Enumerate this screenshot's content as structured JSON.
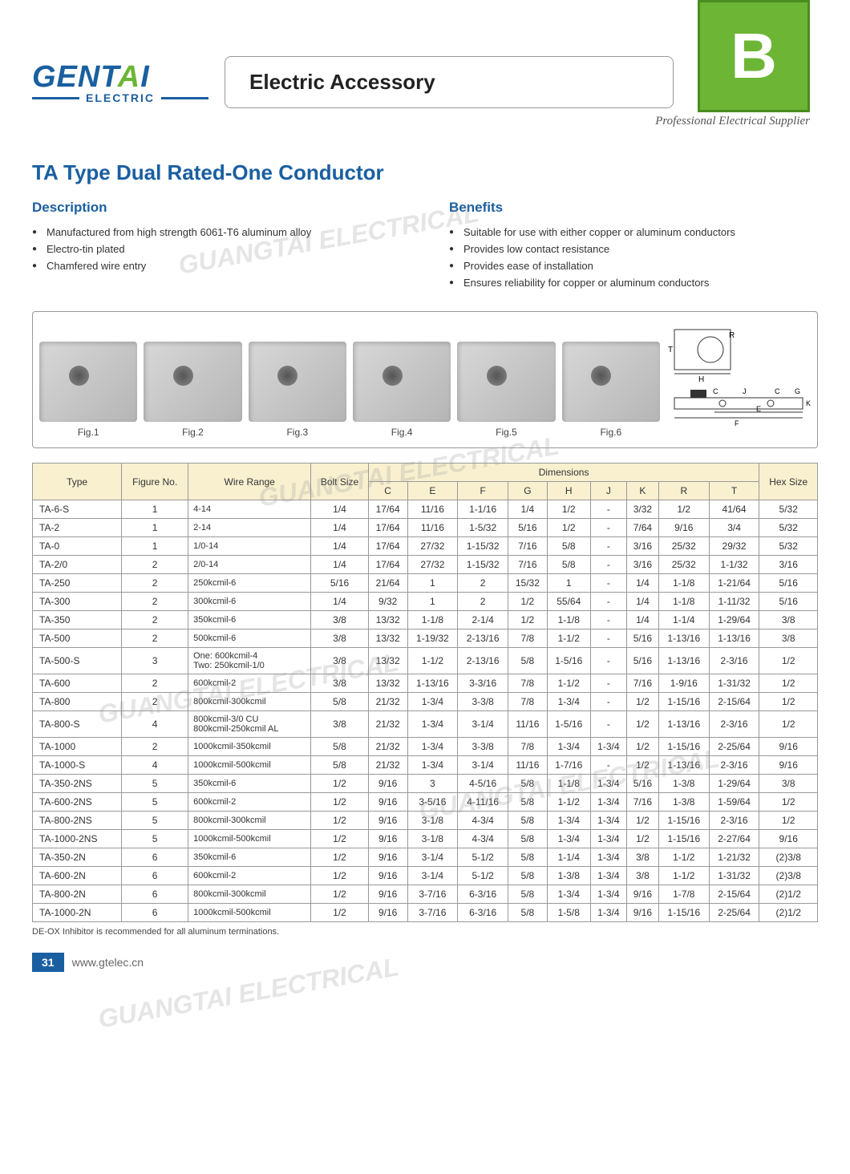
{
  "header": {
    "section_letter": "B",
    "logo_brand": "GENTAI",
    "logo_sub": "ELECTRIC",
    "category": "Electric Accessory",
    "tagline": "Professional Electrical Supplier"
  },
  "section_title": "TA Type Dual Rated-One Conductor",
  "description": {
    "heading": "Description",
    "items": [
      "Manufactured from high strength 6061-T6 aluminum alloy",
      "Electro-tin plated",
      "Chamfered wire entry"
    ]
  },
  "benefits": {
    "heading": "Benefits",
    "items": [
      "Suitable for use with either copper or aluminum conductors",
      "Provides low contact resistance",
      "Provides ease of installation",
      "Ensures reliability for copper or aluminum conductors"
    ]
  },
  "figures": [
    "Fig.1",
    "Fig.2",
    "Fig.3",
    "Fig.4",
    "Fig.5",
    "Fig.6"
  ],
  "table": {
    "top_headers": [
      "Type",
      "Figure No.",
      "Wire Range",
      "Bolt Size",
      "Dimensions",
      "Hex Size"
    ],
    "dim_headers": [
      "C",
      "E",
      "F",
      "G",
      "H",
      "J",
      "K",
      "R",
      "T"
    ],
    "rows": [
      [
        "TA-6-S",
        "1",
        "4-14",
        "1/4",
        "17/64",
        "11/16",
        "1-1/16",
        "1/4",
        "1/2",
        "-",
        "3/32",
        "1/2",
        "41/64",
        "5/32"
      ],
      [
        "TA-2",
        "1",
        "2-14",
        "1/4",
        "17/64",
        "11/16",
        "1-5/32",
        "5/16",
        "1/2",
        "-",
        "7/64",
        "9/16",
        "3/4",
        "5/32"
      ],
      [
        "TA-0",
        "1",
        "1/0-14",
        "1/4",
        "17/64",
        "27/32",
        "1-15/32",
        "7/16",
        "5/8",
        "-",
        "3/16",
        "25/32",
        "29/32",
        "5/32"
      ],
      [
        "TA-2/0",
        "2",
        "2/0-14",
        "1/4",
        "17/64",
        "27/32",
        "1-15/32",
        "7/16",
        "5/8",
        "-",
        "3/16",
        "25/32",
        "1-1/32",
        "3/16"
      ],
      [
        "TA-250",
        "2",
        "250kcmil-6",
        "5/16",
        "21/64",
        "1",
        "2",
        "15/32",
        "1",
        "-",
        "1/4",
        "1-1/8",
        "1-21/64",
        "5/16"
      ],
      [
        "TA-300",
        "2",
        "300kcmil-6",
        "1/4",
        "9/32",
        "1",
        "2",
        "1/2",
        "55/64",
        "-",
        "1/4",
        "1-1/8",
        "1-11/32",
        "5/16"
      ],
      [
        "TA-350",
        "2",
        "350kcmil-6",
        "3/8",
        "13/32",
        "1-1/8",
        "2-1/4",
        "1/2",
        "1-1/8",
        "-",
        "1/4",
        "1-1/4",
        "1-29/64",
        "3/8"
      ],
      [
        "TA-500",
        "2",
        "500kcmil-6",
        "3/8",
        "13/32",
        "1-19/32",
        "2-13/16",
        "7/8",
        "1-1/2",
        "-",
        "5/16",
        "1-13/16",
        "1-13/16",
        "3/8"
      ],
      [
        "TA-500-S",
        "3",
        "One: 600kcmil-4\nTwo: 250kcmil-1/0",
        "3/8",
        "13/32",
        "1-1/2",
        "2-13/16",
        "5/8",
        "1-5/16",
        "-",
        "5/16",
        "1-13/16",
        "2-3/16",
        "1/2"
      ],
      [
        "TA-600",
        "2",
        "600kcmil-2",
        "3/8",
        "13/32",
        "1-13/16",
        "3-3/16",
        "7/8",
        "1-1/2",
        "-",
        "7/16",
        "1-9/16",
        "1-31/32",
        "1/2"
      ],
      [
        "TA-800",
        "2",
        "800kcmil-300kcmil",
        "5/8",
        "21/32",
        "1-3/4",
        "3-3/8",
        "7/8",
        "1-3/4",
        "-",
        "1/2",
        "1-15/16",
        "2-15/64",
        "1/2"
      ],
      [
        "TA-800-S",
        "4",
        "800kcmil-3/0 CU\n800kcmil-250kcmil AL",
        "3/8",
        "21/32",
        "1-3/4",
        "3-1/4",
        "11/16",
        "1-5/16",
        "-",
        "1/2",
        "1-13/16",
        "2-3/16",
        "1/2"
      ],
      [
        "TA-1000",
        "2",
        "1000kcmil-350kcmil",
        "5/8",
        "21/32",
        "1-3/4",
        "3-3/8",
        "7/8",
        "1-3/4",
        "1-3/4",
        "1/2",
        "1-15/16",
        "2-25/64",
        "9/16"
      ],
      [
        "TA-1000-S",
        "4",
        "1000kcmil-500kcmil",
        "5/8",
        "21/32",
        "1-3/4",
        "3-1/4",
        "11/16",
        "1-7/16",
        "-",
        "1/2",
        "1-13/16",
        "2-3/16",
        "9/16"
      ],
      [
        "TA-350-2NS",
        "5",
        "350kcmil-6",
        "1/2",
        "9/16",
        "3",
        "4-5/16",
        "5/8",
        "1-1/8",
        "1-3/4",
        "5/16",
        "1-3/8",
        "1-29/64",
        "3/8"
      ],
      [
        "TA-600-2NS",
        "5",
        "600kcmil-2",
        "1/2",
        "9/16",
        "3-5/16",
        "4-11/16",
        "5/8",
        "1-1/2",
        "1-3/4",
        "7/16",
        "1-3/8",
        "1-59/64",
        "1/2"
      ],
      [
        "TA-800-2NS",
        "5",
        "800kcmil-300kcmil",
        "1/2",
        "9/16",
        "3-1/8",
        "4-3/4",
        "5/8",
        "1-3/4",
        "1-3/4",
        "1/2",
        "1-15/16",
        "2-3/16",
        "1/2"
      ],
      [
        "TA-1000-2NS",
        "5",
        "1000kcmil-500kcmil",
        "1/2",
        "9/16",
        "3-1/8",
        "4-3/4",
        "5/8",
        "1-3/4",
        "1-3/4",
        "1/2",
        "1-15/16",
        "2-27/64",
        "9/16"
      ],
      [
        "TA-350-2N",
        "6",
        "350kcmil-6",
        "1/2",
        "9/16",
        "3-1/4",
        "5-1/2",
        "5/8",
        "1-1/4",
        "1-3/4",
        "3/8",
        "1-1/2",
        "1-21/32",
        "(2)3/8"
      ],
      [
        "TA-600-2N",
        "6",
        "600kcmil-2",
        "1/2",
        "9/16",
        "3-1/4",
        "5-1/2",
        "5/8",
        "1-3/8",
        "1-3/4",
        "3/8",
        "1-1/2",
        "1-31/32",
        "(2)3/8"
      ],
      [
        "TA-800-2N",
        "6",
        "800kcmil-300kcmil",
        "1/2",
        "9/16",
        "3-7/16",
        "6-3/16",
        "5/8",
        "1-3/4",
        "1-3/4",
        "9/16",
        "1-7/8",
        "2-15/64",
        "(2)1/2"
      ],
      [
        "TA-1000-2N",
        "6",
        "1000kcmil-500kcmil",
        "1/2",
        "9/16",
        "3-7/16",
        "6-3/16",
        "5/8",
        "1-5/8",
        "1-3/4",
        "9/16",
        "1-15/16",
        "2-25/64",
        "(2)1/2"
      ]
    ]
  },
  "footnote": "DE-OX Inhibitor is recommended for all aluminum terminations.",
  "footer": {
    "page": "31",
    "url": "www.gtelec.cn"
  },
  "watermark": "GUANGTAI ELECTRICAL",
  "colors": {
    "brand_blue": "#1a5fa0",
    "brand_green": "#6cb535",
    "table_header": "#f9f0d0"
  }
}
